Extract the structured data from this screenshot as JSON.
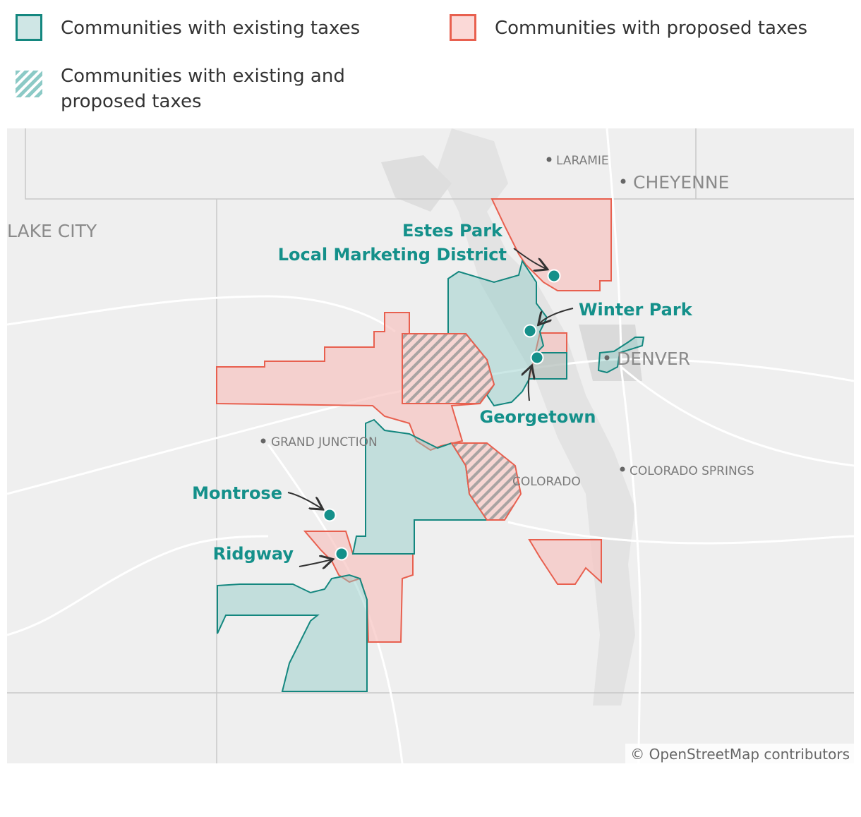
{
  "legend": [
    {
      "label": "Communities with existing taxes"
    },
    {
      "label": "Communities with proposed taxes"
    },
    {
      "label": "Communities with existing and proposed taxes"
    }
  ],
  "places": [
    "LARAMIE",
    "CHEYENNE",
    "LAKE CITY",
    "DENVER",
    "GRAND JUNCTION",
    "COLORADO",
    "COLORADO SPRINGS"
  ],
  "communities": {
    "estes_park": [
      "Estes Park",
      "Local Marketing District"
    ],
    "winter_park": "Winter Park",
    "georgetown": "Georgetown",
    "montrose": "Montrose",
    "ridgway": "Ridgway"
  },
  "attribution": "© OpenStreetMap contributors"
}
